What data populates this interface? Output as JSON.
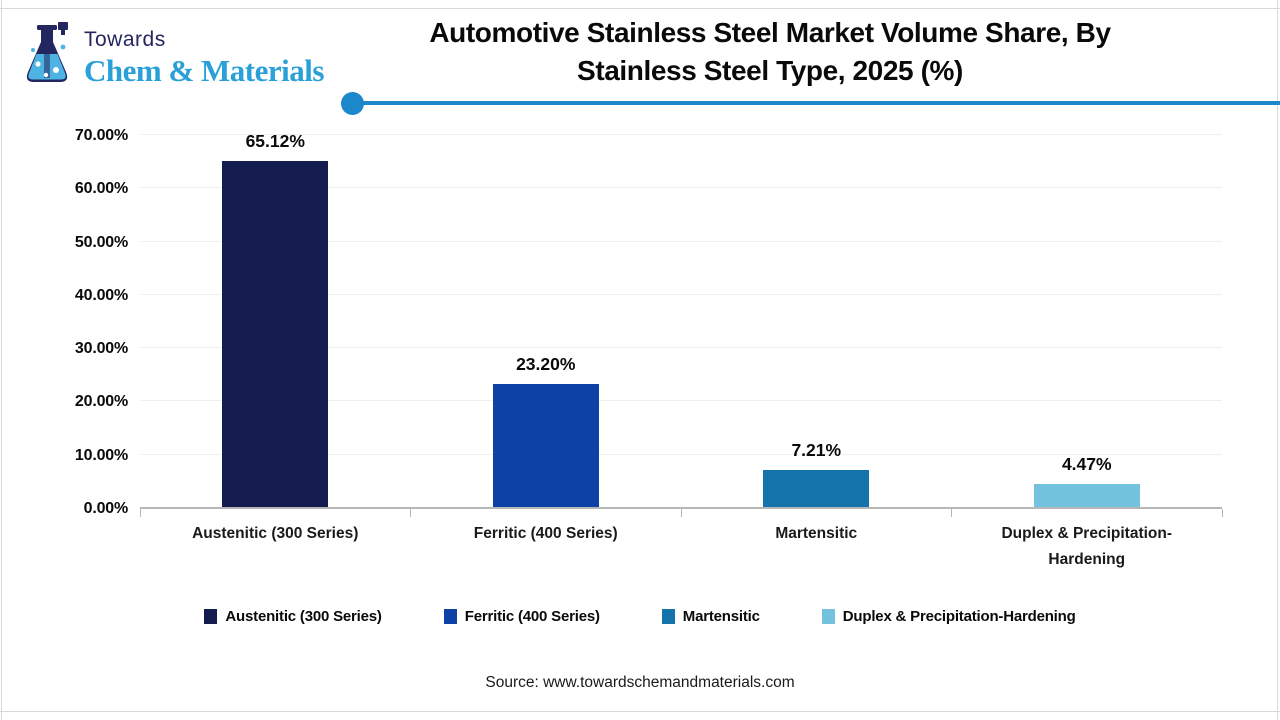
{
  "logo": {
    "towards": "Towards",
    "brand": "Chem & Materials",
    "navy": "#23265f",
    "blue": "#29a1d8",
    "liquid": "#4db3e2"
  },
  "title": {
    "line1": "Automotive Stainless Steel Market Volume Share, By",
    "line2": "Stainless Steel Type, 2025 (%)",
    "rule_color": "#1d87cb"
  },
  "chart_data": {
    "type": "bar",
    "title": "Automotive Stainless Steel Market Volume Share, By Stainless Steel Type, 2025 (%)",
    "categories": [
      "Austenitic (300 Series)",
      "Ferritic (400 Series)",
      "Martensitic",
      "Duplex & Precipitation-Hardening"
    ],
    "values": [
      65.12,
      23.2,
      7.21,
      4.47
    ],
    "value_labels": [
      "65.12%",
      "23.20%",
      "7.21%",
      "4.47%"
    ],
    "bar_colors": [
      "#141b4f",
      "#0d41a6",
      "#1473ab",
      "#73c3de"
    ],
    "xlabel": "",
    "ylabel": "",
    "ylim": [
      0,
      70
    ],
    "ytick_step": 10,
    "ytick_labels": [
      "0.00%",
      "10.00%",
      "20.00%",
      "30.00%",
      "40.00%",
      "50.00%",
      "60.00%",
      "70.00%"
    ],
    "grid": true,
    "grid_color": "#efefef",
    "axis_color": "#b7b7b7",
    "legend_position": "bottom"
  },
  "legend": {
    "items": [
      {
        "label": "Austenitic (300 Series)",
        "color": "#141b4f"
      },
      {
        "label": "Ferritic (400 Series)",
        "color": "#0d41a6"
      },
      {
        "label": "Martensitic",
        "color": "#1473ab"
      },
      {
        "label": "Duplex & Precipitation-Hardening",
        "color": "#73c3de"
      }
    ]
  },
  "source": "Source: www.towardschemandmaterials.com"
}
